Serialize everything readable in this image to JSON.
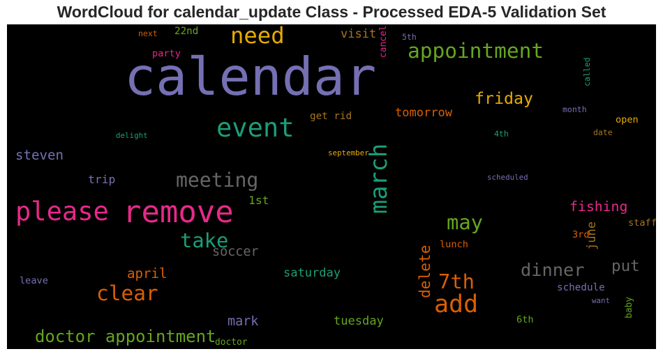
{
  "chart_data": {
    "type": "wordcloud",
    "title": "WordCloud for calendar_update Class - Processed EDA-5 Validation Set",
    "background": "#000000",
    "words": [
      {
        "text": "calendar",
        "weight": 1.0,
        "color": "#7570b3",
        "rot": 0
      },
      {
        "text": "remove",
        "weight": 0.55,
        "color": "#e7298a",
        "rot": 0
      },
      {
        "text": "please",
        "weight": 0.45,
        "color": "#e7298a",
        "rot": 0
      },
      {
        "text": "event",
        "weight": 0.45,
        "color": "#1b9e77",
        "rot": 0
      },
      {
        "text": "march",
        "weight": 0.4,
        "color": "#1b9e77",
        "rot": 1
      },
      {
        "text": "need",
        "weight": 0.38,
        "color": "#e6ab02",
        "rot": 0
      },
      {
        "text": "add",
        "weight": 0.42,
        "color": "#d95f02",
        "rot": 0
      },
      {
        "text": "appointment",
        "weight": 0.34,
        "color": "#66a61e",
        "rot": 0
      },
      {
        "text": "clear",
        "weight": 0.34,
        "color": "#d95f02",
        "rot": 0
      },
      {
        "text": "take",
        "weight": 0.33,
        "color": "#1b9e77",
        "rot": 0
      },
      {
        "text": "meeting",
        "weight": 0.32,
        "color": "#666666",
        "rot": 0
      },
      {
        "text": "may",
        "weight": 0.33,
        "color": "#66a61e",
        "rot": 0
      },
      {
        "text": "7th",
        "weight": 0.33,
        "color": "#d95f02",
        "rot": 0
      },
      {
        "text": "dinner",
        "weight": 0.28,
        "color": "#666666",
        "rot": 0
      },
      {
        "text": "doctor appointment",
        "weight": 0.26,
        "color": "#66a61e",
        "rot": 0
      },
      {
        "text": "friday",
        "weight": 0.25,
        "color": "#e6ab02",
        "rot": 0
      },
      {
        "text": "put",
        "weight": 0.24,
        "color": "#666666",
        "rot": 0
      },
      {
        "text": "delete",
        "weight": 0.22,
        "color": "#d95f02",
        "rot": 1
      },
      {
        "text": "fishing",
        "weight": 0.2,
        "color": "#e7298a",
        "rot": 0
      },
      {
        "text": "steven",
        "weight": 0.19,
        "color": "#7570b3",
        "rot": 0
      },
      {
        "text": "april",
        "weight": 0.19,
        "color": "#d95f02",
        "rot": 0
      },
      {
        "text": "mark",
        "weight": 0.18,
        "color": "#7570b3",
        "rot": 0
      },
      {
        "text": "soccer",
        "weight": 0.18,
        "color": "#666666",
        "rot": 0
      },
      {
        "text": "tomorrow",
        "weight": 0.16,
        "color": "#d95f02",
        "rot": 0
      },
      {
        "text": "visit",
        "weight": 0.16,
        "color": "#a6761d",
        "rot": 0
      },
      {
        "text": "saturday",
        "weight": 0.16,
        "color": "#1b9e77",
        "rot": 0
      },
      {
        "text": "tuesday",
        "weight": 0.16,
        "color": "#66a61e",
        "rot": 0
      },
      {
        "text": "june",
        "weight": 0.16,
        "color": "#a6761d",
        "rot": 1
      },
      {
        "text": "trip",
        "weight": 0.15,
        "color": "#7570b3",
        "rot": 0
      },
      {
        "text": "1st",
        "weight": 0.15,
        "color": "#66a61e",
        "rot": 0
      },
      {
        "text": "schedule",
        "weight": 0.12,
        "color": "#7570b3",
        "rot": 0
      },
      {
        "text": "get rid",
        "weight": 0.12,
        "color": "#a6761d",
        "rot": 0
      },
      {
        "text": "22nd",
        "weight": 0.12,
        "color": "#66a61e",
        "rot": 0
      },
      {
        "text": "party",
        "weight": 0.11,
        "color": "#e7298a",
        "rot": 0
      },
      {
        "text": "lunch",
        "weight": 0.11,
        "color": "#d95f02",
        "rot": 0
      },
      {
        "text": "leave",
        "weight": 0.11,
        "color": "#7570b3",
        "rot": 0
      },
      {
        "text": "3rd",
        "weight": 0.11,
        "color": "#d95f02",
        "rot": 0
      },
      {
        "text": "staff",
        "weight": 0.11,
        "color": "#a6761d",
        "rot": 0
      },
      {
        "text": "open",
        "weight": 0.11,
        "color": "#e6ab02",
        "rot": 0
      },
      {
        "text": "6th",
        "weight": 0.11,
        "color": "#66a61e",
        "rot": 0
      },
      {
        "text": "doctor",
        "weight": 0.1,
        "color": "#66a61e",
        "rot": 0
      },
      {
        "text": "cancel",
        "weight": 0.1,
        "color": "#e7298a",
        "rot": 1
      },
      {
        "text": "baby",
        "weight": 0.1,
        "color": "#66a61e",
        "rot": 1
      },
      {
        "text": "next",
        "weight": 0.08,
        "color": "#d95f02",
        "rot": 0
      },
      {
        "text": "5th",
        "weight": 0.08,
        "color": "#7570b3",
        "rot": 0
      },
      {
        "text": "called",
        "weight": 0.08,
        "color": "#1b9e77",
        "rot": 1
      },
      {
        "text": "month",
        "weight": 0.08,
        "color": "#7570b3",
        "rot": 0
      },
      {
        "text": "date",
        "weight": 0.08,
        "color": "#a6761d",
        "rot": 0
      },
      {
        "text": "4th",
        "weight": 0.08,
        "color": "#1b9e77",
        "rot": 0
      },
      {
        "text": "delight",
        "weight": 0.07,
        "color": "#1b9e77",
        "rot": 0
      },
      {
        "text": "september",
        "weight": 0.07,
        "color": "#e6ab02",
        "rot": 0
      },
      {
        "text": "scheduled",
        "weight": 0.07,
        "color": "#7570b3",
        "rot": 0
      },
      {
        "text": "want",
        "weight": 0.07,
        "color": "#7570b3",
        "rot": 0
      }
    ]
  }
}
